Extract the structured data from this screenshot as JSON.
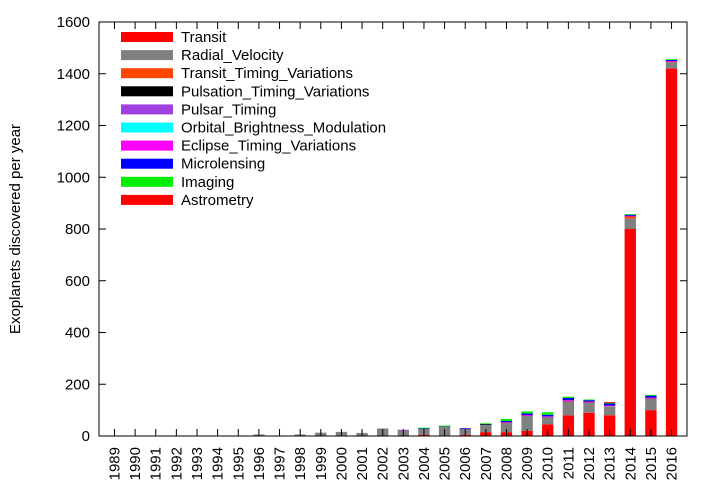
{
  "chart_data": {
    "type": "bar",
    "stacked": true,
    "title": "",
    "xlabel": "",
    "ylabel": "Exoplanets discovered per year",
    "ylim": [
      0,
      1600
    ],
    "yticks": [
      0,
      200,
      400,
      600,
      800,
      1000,
      1200,
      1400,
      1600
    ],
    "grid": false,
    "legend_position": "top-left",
    "categories": [
      "1989",
      "1990",
      "1991",
      "1992",
      "1993",
      "1994",
      "1995",
      "1996",
      "1997",
      "1998",
      "1999",
      "2000",
      "2001",
      "2002",
      "2003",
      "2004",
      "2005",
      "2006",
      "2007",
      "2008",
      "2009",
      "2010",
      "2011",
      "2012",
      "2013",
      "2014",
      "2015",
      "2016"
    ],
    "series": [
      {
        "name": "Transit",
        "color": "#ff0000",
        "values": [
          0,
          0,
          0,
          0,
          0,
          0,
          0,
          0,
          0,
          0,
          0,
          0,
          0,
          1,
          1,
          5,
          2,
          5,
          15,
          15,
          20,
          45,
          80,
          90,
          80,
          800,
          100,
          1420
        ]
      },
      {
        "name": "Radial_Velocity",
        "color": "#808080",
        "values": [
          1,
          0,
          0,
          0,
          0,
          0,
          1,
          6,
          1,
          6,
          13,
          16,
          12,
          28,
          22,
          24,
          35,
          22,
          30,
          38,
          60,
          30,
          55,
          40,
          33,
          40,
          45,
          25
        ]
      },
      {
        "name": "Transit_Timing_Variations",
        "color": "#ff4500",
        "values": [
          0,
          0,
          0,
          0,
          0,
          0,
          0,
          0,
          0,
          0,
          0,
          0,
          0,
          0,
          0,
          0,
          0,
          0,
          0,
          0,
          0,
          0,
          1,
          2,
          3,
          10,
          2,
          3
        ]
      },
      {
        "name": "Pulsation_Timing_Variations",
        "color": "#000000",
        "values": [
          0,
          0,
          0,
          0,
          0,
          0,
          0,
          0,
          0,
          0,
          0,
          0,
          0,
          0,
          0,
          0,
          0,
          0,
          1,
          0,
          0,
          0,
          0,
          0,
          0,
          0,
          0,
          0
        ]
      },
      {
        "name": "Pulsar_Timing",
        "color": "#a040e0",
        "values": [
          0,
          0,
          0,
          2,
          0,
          0,
          0,
          0,
          0,
          0,
          0,
          0,
          0,
          0,
          1,
          0,
          0,
          0,
          0,
          0,
          0,
          0,
          1,
          0,
          0,
          0,
          0,
          0
        ]
      },
      {
        "name": "Orbital_Brightness_Modulation",
        "color": "#00ffff",
        "values": [
          0,
          0,
          0,
          0,
          0,
          0,
          0,
          0,
          0,
          0,
          0,
          0,
          0,
          0,
          0,
          0,
          0,
          0,
          0,
          0,
          0,
          0,
          0,
          0,
          1,
          0,
          0,
          0
        ]
      },
      {
        "name": "Eclipse_Timing_Variations",
        "color": "#ff00ff",
        "values": [
          0,
          0,
          0,
          0,
          0,
          0,
          0,
          0,
          0,
          0,
          0,
          0,
          0,
          0,
          0,
          0,
          0,
          0,
          0,
          1,
          1,
          1,
          2,
          1,
          1,
          1,
          1,
          1
        ]
      },
      {
        "name": "Microlensing",
        "color": "#0000ff",
        "values": [
          0,
          0,
          0,
          0,
          0,
          0,
          0,
          0,
          0,
          0,
          0,
          0,
          0,
          0,
          0,
          1,
          2,
          3,
          2,
          4,
          6,
          6,
          8,
          6,
          8,
          4,
          8,
          5
        ]
      },
      {
        "name": "Imaging",
        "color": "#00ee00",
        "values": [
          0,
          0,
          0,
          0,
          0,
          0,
          0,
          0,
          0,
          0,
          0,
          0,
          0,
          0,
          0,
          2,
          1,
          0,
          1,
          8,
          8,
          10,
          5,
          2,
          4,
          3,
          3,
          2
        ]
      },
      {
        "name": "Astrometry",
        "color": "#ff0000",
        "values": [
          0,
          0,
          0,
          0,
          0,
          0,
          0,
          0,
          0,
          0,
          0,
          0,
          0,
          0,
          0,
          0,
          0,
          0,
          0,
          0,
          0,
          0,
          0,
          0,
          1,
          0,
          0,
          0
        ]
      }
    ]
  }
}
